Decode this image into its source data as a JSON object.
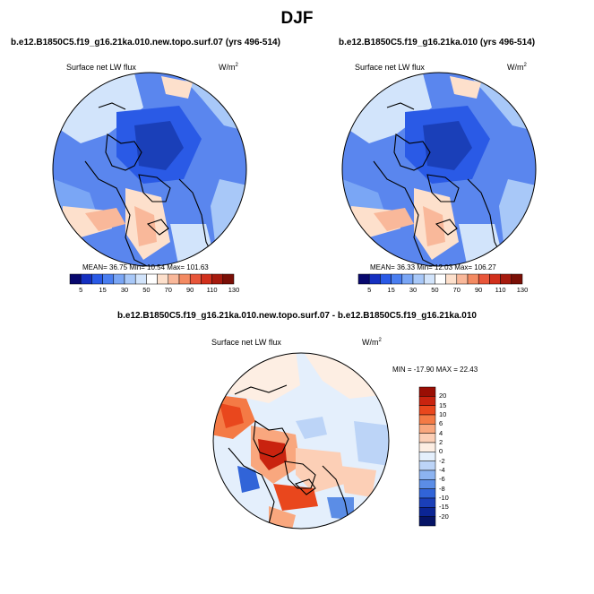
{
  "title": "DJF",
  "panels": [
    {
      "case": "b.e12.B1850C5.f19_g16.21ka.010.new.topo.surf.07 (yrs 496-514)",
      "variable": "Surface net LW flux",
      "units": "W/m",
      "units_sup": "2",
      "stats": "MEAN=  36.75  Min=  10.54  Max= 101.63",
      "colorbar_labels": [
        "5",
        "15",
        "30",
        "50",
        "70",
        "90",
        "110",
        "130"
      ]
    },
    {
      "case": "b.e12.B1850C5.f19_g16.21ka.010 (yrs 496-514)",
      "variable": "Surface net LW flux",
      "units": "W/m",
      "units_sup": "2",
      "stats": "MEAN=  36.33  Min=  12.03  Max= 106.27",
      "colorbar_labels": [
        "5",
        "15",
        "30",
        "50",
        "70",
        "90",
        "110",
        "130"
      ]
    }
  ],
  "diff": {
    "case": "b.e12.B1850C5.f19_g16.21ka.010.new.topo.surf.07 - b.e12.B1850C5.f19_g16.21ka.010",
    "variable": "Surface net LW flux",
    "units": "W/m",
    "units_sup": "2",
    "stats": "MIN = -17.90 MAX =  22.43",
    "colorbar_labels": [
      "20",
      "15",
      "10",
      "6",
      "4",
      "2",
      "0",
      "-2",
      "-4",
      "-6",
      "-8",
      "-10",
      "-15",
      "-20"
    ]
  },
  "colors": {
    "abs_scale": [
      "#08086e",
      "#1530c0",
      "#2a5ae6",
      "#4a7ef0",
      "#7aa6f5",
      "#a8c8f8",
      "#d2e4fb",
      "#ffffff",
      "#fde0cc",
      "#f9b89a",
      "#f38a62",
      "#e8563a",
      "#d1301c",
      "#a61a0e",
      "#7a0f06"
    ],
    "diff_scale": [
      "#9a0e04",
      "#c9230f",
      "#e9471d",
      "#f47a45",
      "#f9a77e",
      "#fccfb6",
      "#fdeee3",
      "#e4effc",
      "#bcd4f7",
      "#8cb3f0",
      "#5b8de6",
      "#3164d8",
      "#1a3fb8",
      "#0b2594",
      "#061466"
    ]
  }
}
